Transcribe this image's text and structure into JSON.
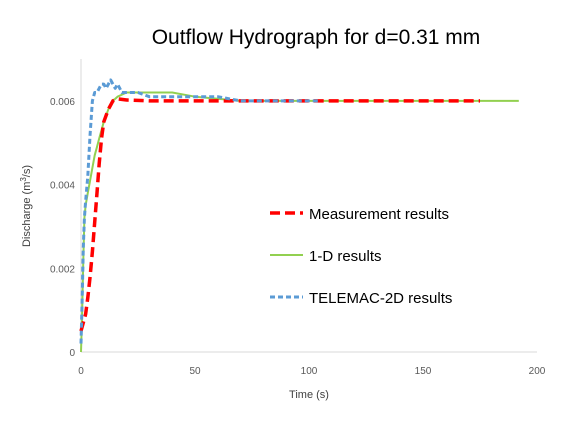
{
  "chart_data": {
    "type": "line",
    "title": "Outflow Hydrograph for d=0.31 mm",
    "xlabel": "Time (s)",
    "ylabel_main": "Discharge (m",
    "ylabel_sup": "3",
    "ylabel_tail": "/s)",
    "xlim": [
      0,
      200
    ],
    "ylim": [
      0,
      0.007
    ],
    "x_ticks": [
      0,
      50,
      100,
      150,
      200
    ],
    "x_tick_labels": [
      "0",
      "50",
      "100",
      "150",
      "200"
    ],
    "y_ticks": [
      0,
      0.002,
      0.004,
      0.006
    ],
    "y_tick_labels": [
      "0",
      "0.002",
      "0.004",
      "0.006"
    ],
    "grid": false,
    "legend_position": "center-right",
    "series": [
      {
        "name": "Measurement results",
        "color": "#ff0000",
        "dash": "long-dash",
        "x": [
          0,
          1,
          2,
          3,
          4,
          5,
          6,
          7,
          8,
          9,
          10,
          12,
          14,
          16,
          20,
          30,
          40,
          60,
          80,
          100,
          120,
          140,
          160,
          175
        ],
        "y": [
          0.0005,
          0.0007,
          0.0009,
          0.0013,
          0.0018,
          0.0024,
          0.0031,
          0.0038,
          0.0045,
          0.0051,
          0.0055,
          0.0058,
          0.006,
          0.00605,
          0.00602,
          0.006,
          0.006,
          0.006,
          0.006,
          0.006,
          0.006,
          0.006,
          0.006,
          0.006
        ]
      },
      {
        "name": "1-D results",
        "color": "#92d050",
        "dash": "solid",
        "x": [
          0,
          0.5,
          1,
          1.5,
          2,
          3,
          4,
          5,
          6,
          7,
          8,
          10,
          12,
          14,
          16,
          18,
          20,
          25,
          30,
          35,
          40,
          50,
          60,
          70,
          80,
          100,
          120,
          140,
          160,
          180,
          192
        ],
        "y": [
          0,
          0.0009,
          0.0022,
          0.0032,
          0.0035,
          0.0038,
          0.0041,
          0.0044,
          0.0047,
          0.0049,
          0.0051,
          0.0055,
          0.0058,
          0.006,
          0.0061,
          0.00615,
          0.0062,
          0.0062,
          0.0062,
          0.0062,
          0.0062,
          0.0061,
          0.00605,
          0.006,
          0.006,
          0.006,
          0.006,
          0.006,
          0.006,
          0.006,
          0.006
        ]
      },
      {
        "name": "TELEMAC-2D results",
        "color": "#5b9bd5",
        "dash": "short-dash",
        "x": [
          0,
          0.5,
          1,
          1.5,
          2,
          2.5,
          3,
          4,
          5,
          6,
          7,
          8,
          9,
          10,
          11,
          12,
          13,
          14,
          15,
          16,
          18,
          20,
          25,
          30,
          40,
          50,
          60,
          70,
          80,
          90,
          100,
          105
        ],
        "y": [
          0.0002,
          0.0012,
          0.0025,
          0.0032,
          0.0036,
          0.0039,
          0.0042,
          0.0052,
          0.006,
          0.0062,
          0.0062,
          0.0063,
          0.0064,
          0.0064,
          0.0063,
          0.0064,
          0.0065,
          0.0064,
          0.0063,
          0.0064,
          0.0062,
          0.0062,
          0.0062,
          0.0061,
          0.0061,
          0.0061,
          0.0061,
          0.006,
          0.006,
          0.006,
          0.006,
          0.006
        ]
      }
    ]
  }
}
